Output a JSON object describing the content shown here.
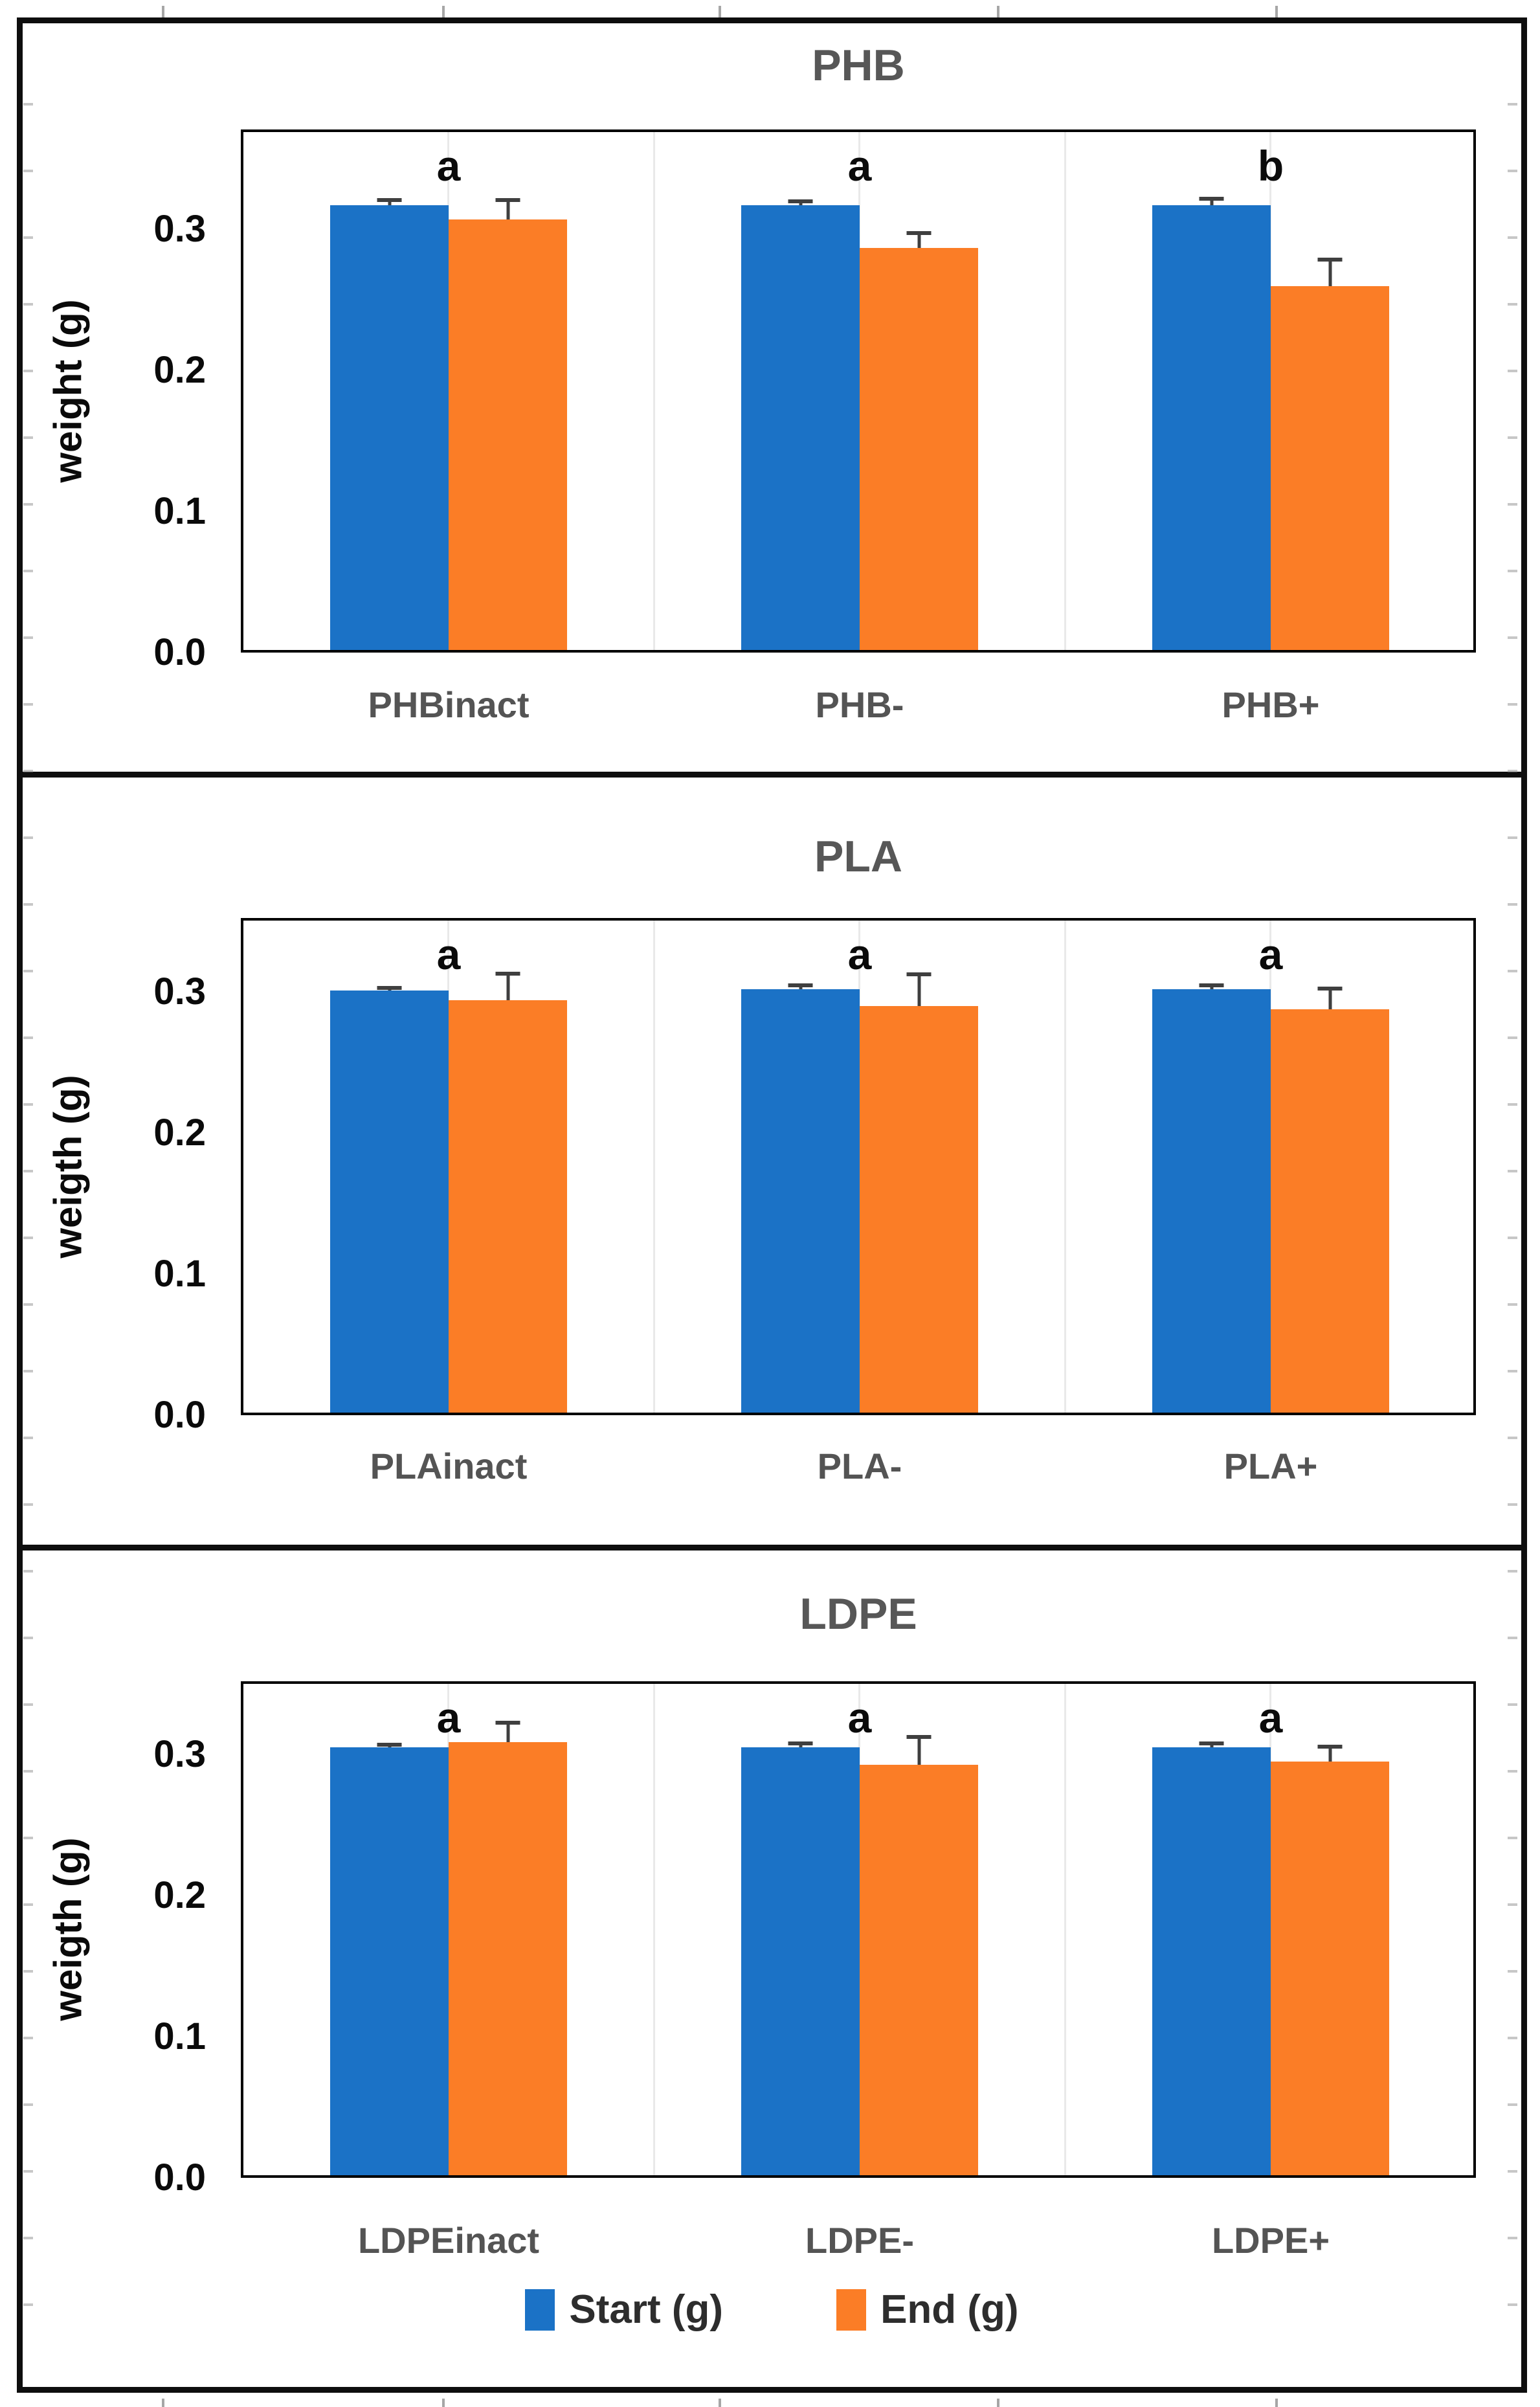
{
  "figure": {
    "kind": "three stacked grouped bar charts with error bars and significance letters",
    "accent_colors": {
      "start_blue": "#1b72c6",
      "end_orange": "#fb7d26"
    }
  },
  "legend": {
    "items": [
      {
        "label": "Start (g)",
        "color": "#1b72c6"
      },
      {
        "label": "End (g)",
        "color": "#fb7d26"
      }
    ],
    "position": "bottom-center"
  },
  "chart_data": [
    {
      "type": "bar",
      "title": "PHB",
      "ylabel": "weight (g)",
      "xlabel": "",
      "categories": [
        "PHBinact",
        "PHB-",
        "PHB+"
      ],
      "series": [
        {
          "name": "Start (g)",
          "values": [
            0.315,
            0.315,
            0.315
          ],
          "errors": [
            0.005,
            0.004,
            0.006
          ]
        },
        {
          "name": "End (g)",
          "values": [
            0.305,
            0.285,
            0.258
          ],
          "errors": [
            0.015,
            0.012,
            0.02
          ]
        }
      ],
      "sig_letters": [
        "a",
        "a",
        "b"
      ],
      "yticklabels": [
        "0.3",
        "0.2",
        "0.1",
        "0.0"
      ],
      "ylim": [
        0,
        0.37
      ],
      "grid": "faint vertical category lines",
      "legend_position": "shared bottom"
    },
    {
      "type": "bar",
      "title": "PLA",
      "ylabel": "weigth (g)",
      "xlabel": "",
      "categories": [
        "PLAinact",
        "PLA-",
        "PLA+"
      ],
      "series": [
        {
          "name": "Start (g)",
          "values": [
            0.299,
            0.3,
            0.3
          ],
          "errors": [
            0.003,
            0.004,
            0.004
          ]
        },
        {
          "name": "End (g)",
          "values": [
            0.292,
            0.288,
            0.286
          ],
          "errors": [
            0.02,
            0.024,
            0.016
          ]
        }
      ],
      "sig_letters": [
        "a",
        "a",
        "a"
      ],
      "yticklabels": [
        "0.3",
        "0.2",
        "0.1",
        "0.0"
      ],
      "ylim": [
        0,
        0.355
      ],
      "grid": "faint vertical category lines",
      "legend_position": "shared bottom"
    },
    {
      "type": "bar",
      "title": "LDPE",
      "ylabel": "weigth (g)",
      "xlabel": "",
      "categories": [
        "LDPEinact",
        "LDPE-",
        "LDPE+"
      ],
      "series": [
        {
          "name": "Start (g)",
          "values": [
            0.303,
            0.303,
            0.303
          ],
          "errors": [
            0.003,
            0.004,
            0.004
          ]
        },
        {
          "name": "End (g)",
          "values": [
            0.307,
            0.291,
            0.293
          ],
          "errors": [
            0.015,
            0.021,
            0.012
          ]
        }
      ],
      "sig_letters": [
        "a",
        "a",
        "a"
      ],
      "yticklabels": [
        "0.3",
        "0.2",
        "0.1",
        "0.0"
      ],
      "ylim": [
        0,
        0.353
      ],
      "grid": "faint vertical category lines",
      "legend_position": "shared bottom"
    }
  ]
}
